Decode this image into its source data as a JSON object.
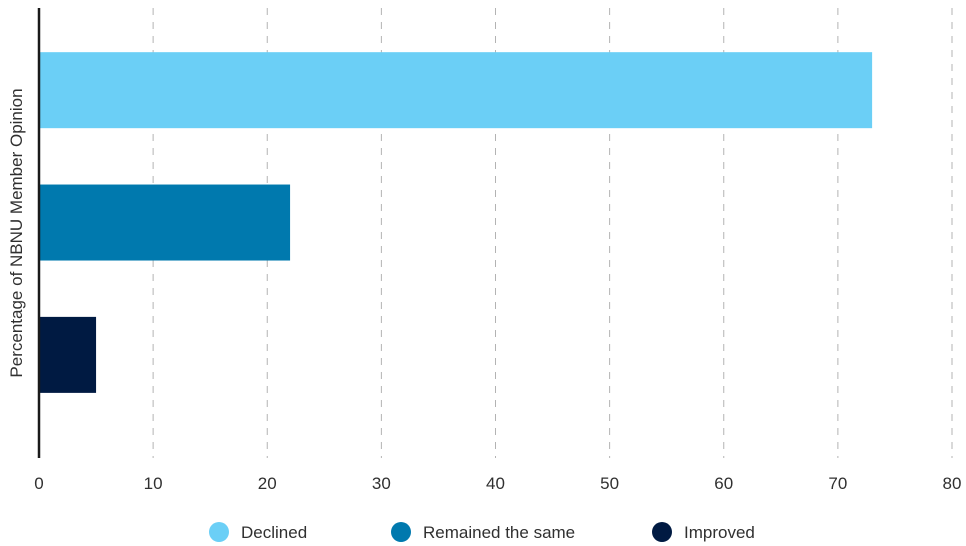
{
  "chart_data": {
    "type": "bar",
    "orientation": "horizontal",
    "title": "",
    "xlabel": "",
    "ylabel": "Percentage of NBNU Member Opinion",
    "xlim": [
      0,
      80
    ],
    "x_ticks": [
      0,
      10,
      20,
      30,
      40,
      50,
      60,
      70,
      80
    ],
    "grid": "vertical dashed",
    "legend_position": "bottom",
    "series": [
      {
        "name": "Declined",
        "value": 73,
        "color": "#6bcff6"
      },
      {
        "name": "Remained the same",
        "value": 22,
        "color": "#0079ae"
      },
      {
        "name": "Improved",
        "value": 5,
        "color": "#001a42"
      }
    ]
  }
}
